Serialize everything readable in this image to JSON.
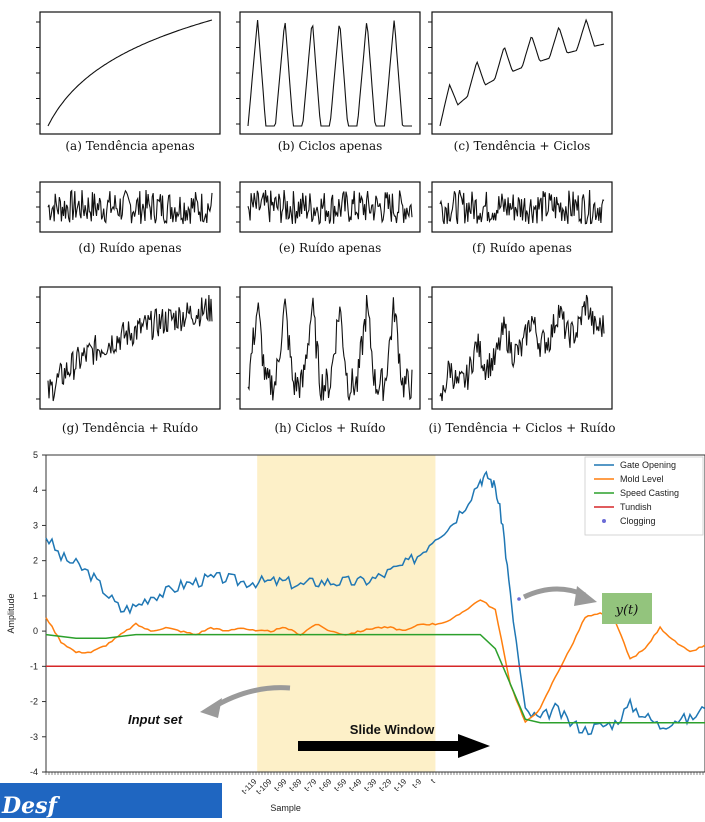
{
  "panels": [
    {
      "caption": "(a) Tendência apenas",
      "components": {
        "trend": true,
        "cycle": false,
        "noise": false
      }
    },
    {
      "caption": "(b) Ciclos apenas",
      "components": {
        "trend": false,
        "cycle": true,
        "noise": false
      }
    },
    {
      "caption": "(c) Tendência + Ciclos",
      "components": {
        "trend": true,
        "cycle": true,
        "noise": false
      }
    },
    {
      "caption": "(d) Ruído apenas",
      "components": {
        "trend": false,
        "cycle": false,
        "noise": true
      }
    },
    {
      "caption": "(e) Ruído apenas",
      "components": {
        "trend": false,
        "cycle": false,
        "noise": true
      }
    },
    {
      "caption": "(f) Ruído apenas",
      "components": {
        "trend": false,
        "cycle": false,
        "noise": true
      }
    },
    {
      "caption": "(g) Tendência + Ruído",
      "components": {
        "trend": true,
        "cycle": false,
        "noise": true
      }
    },
    {
      "caption": "(h) Ciclos + Ruído",
      "components": {
        "trend": false,
        "cycle": true,
        "noise": true
      }
    },
    {
      "caption": "(i) Tendência + Ciclos + Ruído",
      "components": {
        "trend": true,
        "cycle": true,
        "noise": true
      }
    }
  ],
  "annotations": {
    "input_set": "Input set",
    "slide_window": "Slide Window",
    "target": "y(t)"
  },
  "bottom_banner": "Desf",
  "chart_data": {
    "type": "line",
    "xlabel": "Sample",
    "ylabel": "Amplitude",
    "ylim": [
      -4,
      5
    ],
    "yticks": [
      -4,
      -3,
      -2,
      -1,
      0,
      1,
      2,
      3,
      4,
      5
    ],
    "xticks": [
      "t-119",
      "t-109",
      "t-99",
      "t-89",
      "t-79",
      "t-69",
      "t-59",
      "t-49",
      "t-39",
      "t-29",
      "t-19",
      "t-9",
      "t"
    ],
    "legend_position": "top-right",
    "highlight_window": {
      "from": "t-119",
      "to": "t"
    },
    "series": [
      {
        "name": "Gate Opening",
        "color": "#1f77b4",
        "x": [
          -260,
          -250,
          -240,
          -230,
          -220,
          -210,
          -200,
          -190,
          -180,
          -170,
          -160,
          -150,
          -140,
          -130,
          -120,
          -110,
          -100,
          -90,
          -80,
          -70,
          -60,
          -50,
          -40,
          -30,
          -20,
          -10,
          0,
          10,
          20,
          30,
          35,
          40,
          45,
          50,
          60,
          70,
          80,
          90,
          100,
          110,
          120,
          130,
          140,
          150,
          160,
          170,
          180
        ],
        "y": [
          2.7,
          2.1,
          1.9,
          1.6,
          1.1,
          0.6,
          0.7,
          1.0,
          1.1,
          1.3,
          1.4,
          1.5,
          1.5,
          1.4,
          1.4,
          1.4,
          1.4,
          1.3,
          1.4,
          1.4,
          1.4,
          1.4,
          1.5,
          1.7,
          1.9,
          2.2,
          2.7,
          3.0,
          3.6,
          4.3,
          4.4,
          4.1,
          3.0,
          1.0,
          -2.3,
          -2.5,
          -2.2,
          -2.6,
          -2.8,
          -2.7,
          -2.6,
          -2.1,
          -2.4,
          -2.7,
          -2.5,
          -2.5,
          -2.2
        ]
      },
      {
        "name": "Mold Level",
        "color": "#ff7f0e",
        "x": [
          -260,
          -250,
          -240,
          -230,
          -220,
          -210,
          -200,
          -190,
          -180,
          -170,
          -160,
          -150,
          -140,
          -130,
          -120,
          -110,
          -100,
          -90,
          -80,
          -70,
          -60,
          -50,
          -40,
          -30,
          -20,
          -10,
          0,
          10,
          20,
          30,
          40,
          50,
          60,
          70,
          80,
          90,
          100,
          110,
          120,
          130,
          140,
          150,
          160,
          170,
          180
        ],
        "y": [
          0.4,
          -0.3,
          -0.6,
          -0.6,
          -0.4,
          -0.1,
          0.2,
          0.0,
          0.1,
          0.0,
          -0.1,
          0.1,
          0.0,
          0.1,
          0.0,
          0.0,
          0.1,
          -0.1,
          0.2,
          0.0,
          -0.1,
          0.0,
          0.1,
          0.1,
          0.0,
          0.2,
          0.2,
          0.3,
          0.6,
          0.9,
          0.6,
          -1.5,
          -2.6,
          -2.2,
          -1.3,
          -0.5,
          0.4,
          0.5,
          0.3,
          -0.8,
          -0.5,
          0.1,
          -0.3,
          -0.6,
          -0.4
        ]
      },
      {
        "name": "Speed Casting",
        "color": "#2ca02c",
        "x": [
          -260,
          -240,
          -220,
          -200,
          -180,
          -160,
          -140,
          -120,
          -100,
          -80,
          -60,
          -40,
          -20,
          0,
          20,
          30,
          40,
          50,
          60,
          70,
          80,
          100,
          120,
          140,
          160,
          180
        ],
        "y": [
          -0.1,
          -0.2,
          -0.2,
          -0.1,
          -0.1,
          -0.1,
          -0.1,
          -0.1,
          -0.1,
          -0.1,
          -0.1,
          -0.1,
          -0.1,
          -0.1,
          -0.1,
          -0.1,
          -0.5,
          -1.5,
          -2.5,
          -2.6,
          -2.6,
          -2.6,
          -2.6,
          -2.6,
          -2.6,
          -2.6
        ]
      },
      {
        "name": "Tundish",
        "color": "#d62728",
        "x": [
          -260,
          180
        ],
        "y": [
          -1.0,
          -1.0
        ]
      },
      {
        "name": "Clogging",
        "color": "#6b6bd6",
        "marker": "dot",
        "x": [],
        "y": []
      }
    ]
  }
}
